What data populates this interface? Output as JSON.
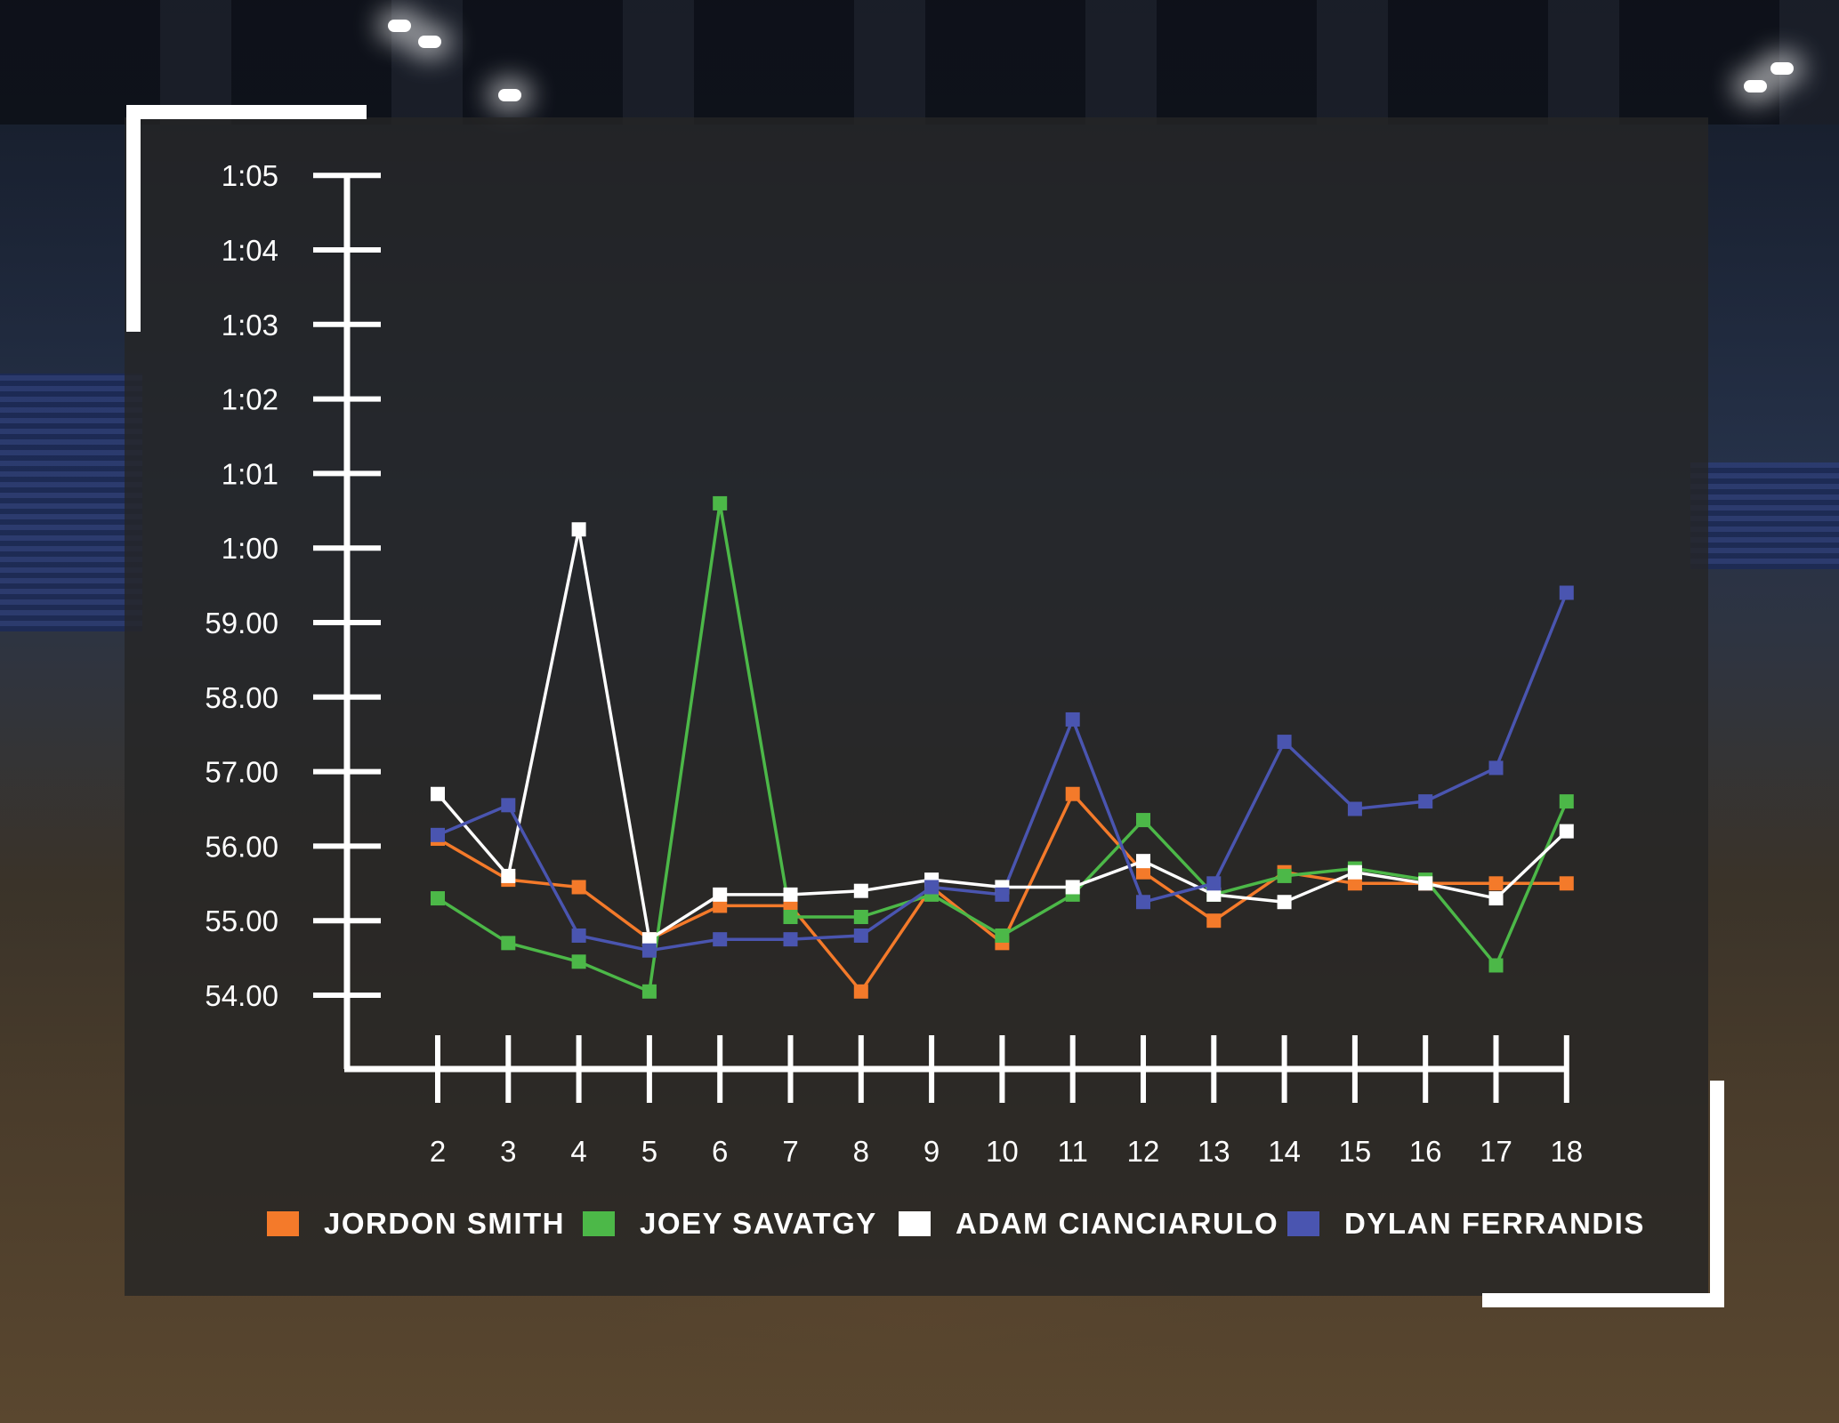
{
  "colors": {
    "JORDON SMITH": "#f47a2a",
    "JOEY SAVATGY": "#4cb848",
    "ADAM CIANCIARULO": "#ffffff",
    "DYLAN FERRANDIS": "#4a55b0"
  },
  "chart_data": {
    "type": "line",
    "x": [
      2,
      3,
      4,
      5,
      6,
      7,
      8,
      9,
      10,
      11,
      12,
      13,
      14,
      15,
      16,
      17,
      18
    ],
    "y_tick_labels": [
      "54.00",
      "55.00",
      "56.00",
      "57.00",
      "58.00",
      "59.00",
      "1:00",
      "1:01",
      "1:02",
      "1:03",
      "1:04",
      "1:05"
    ],
    "ylim": [
      54,
      65
    ],
    "ylabel": "",
    "xlabel": "",
    "title": "",
    "grid": false,
    "legend_position": "bottom",
    "series": [
      {
        "name": "JORDON SMITH",
        "values": [
          56.1,
          55.55,
          55.45,
          54.75,
          55.2,
          55.2,
          54.05,
          55.45,
          54.7,
          56.7,
          55.65,
          55.0,
          55.65,
          55.5,
          55.5,
          55.5,
          55.5
        ]
      },
      {
        "name": "JOEY SAVATGY",
        "values": [
          55.3,
          54.7,
          54.45,
          54.05,
          60.6,
          55.05,
          55.05,
          55.35,
          54.8,
          55.35,
          56.35,
          55.35,
          55.6,
          55.7,
          55.55,
          54.4,
          56.6
        ]
      },
      {
        "name": "ADAM CIANCIARULO",
        "values": [
          56.7,
          55.6,
          60.25,
          54.75,
          55.35,
          55.35,
          55.4,
          55.55,
          55.45,
          55.45,
          55.8,
          55.35,
          55.25,
          55.65,
          55.5,
          55.3,
          56.2
        ]
      },
      {
        "name": "DYLAN FERRANDIS",
        "values": [
          56.15,
          56.55,
          54.8,
          54.6,
          54.75,
          54.75,
          54.8,
          55.45,
          55.35,
          57.7,
          55.25,
          55.5,
          57.4,
          56.5,
          56.6,
          57.05,
          59.4
        ]
      }
    ]
  }
}
